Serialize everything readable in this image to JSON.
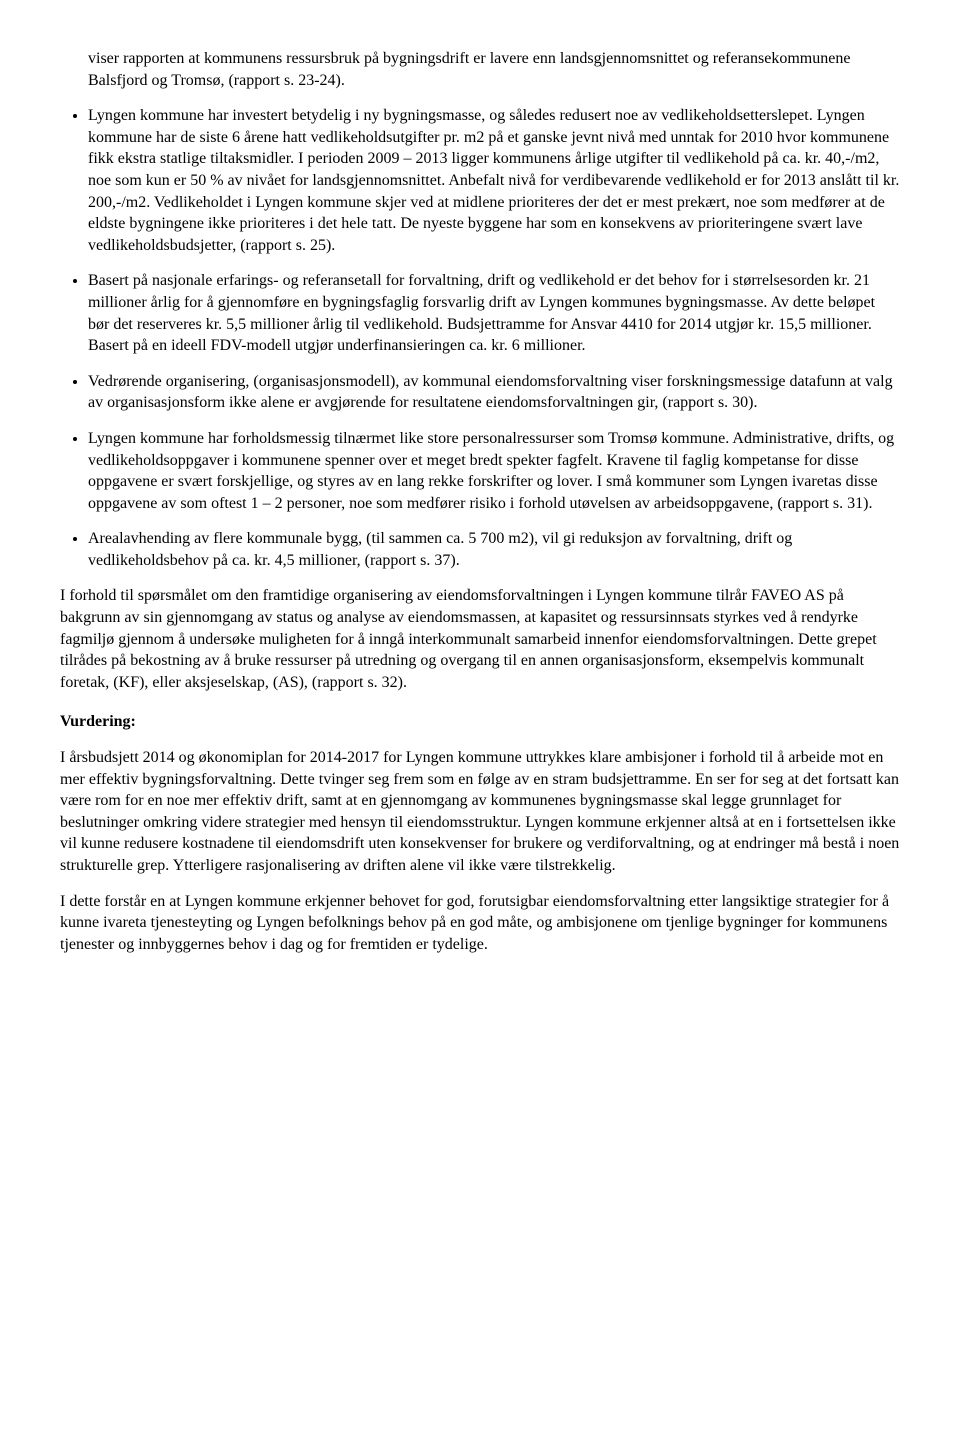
{
  "continued_bullet_text": "viser rapporten at kommunens ressursbruk på bygningsdrift er lavere enn landsgjennomsnittet og referansekommunene Balsfjord og Tromsø, (rapport s. 23-24).",
  "bullets": [
    "Lyngen kommune har investert betydelig i ny bygningsmasse, og således redusert noe av vedlikeholdsetterslepet. Lyngen kommune har de siste 6 årene hatt vedlikeholdsutgifter pr. m2 på et ganske jevnt nivå med unntak for 2010 hvor kommunene fikk ekstra statlige tiltaksmidler. I perioden 2009 – 2013 ligger kommunens årlige utgifter til vedlikehold på ca. kr. 40,-/m2, noe som kun er 50 % av nivået for landsgjennomsnittet. Anbefalt nivå for verdibevarende vedlikehold er for 2013 anslått til kr. 200,-/m2. Vedlikeholdet i Lyngen kommune skjer ved at midlene prioriteres der det er mest prekært, noe som medfører at de eldste bygningene ikke prioriteres i det hele tatt. De nyeste byggene har som en konsekvens av prioriteringene svært lave vedlikeholdsbudsjetter, (rapport s. 25).",
    "Basert på nasjonale erfarings- og referansetall for forvaltning, drift og vedlikehold er det behov for i størrelsesorden kr. 21 millioner årlig for å gjennomføre en bygningsfaglig forsvarlig drift av Lyngen kommunes bygningsmasse. Av dette beløpet bør det reserveres kr. 5,5 millioner årlig til vedlikehold. Budsjettramme for Ansvar 4410 for 2014 utgjør kr. 15,5 millioner. Basert på en ideell FDV-modell utgjør underfinansieringen ca. kr. 6 millioner.",
    "Vedrørende organisering, (organisasjonsmodell), av kommunal eiendomsforvaltning viser forskningsmessige datafunn at valg av organisasjonsform ikke alene er avgjørende for resultatene eiendomsforvaltningen gir, (rapport s. 30).",
    "Lyngen kommune har forholdsmessig tilnærmet like store personalressurser som Tromsø kommune. Administrative, drifts, og vedlikeholdsoppgaver i kommunene spenner over et meget bredt spekter fagfelt. Kravene til faglig kompetanse for disse oppgavene er svært forskjellige, og styres av en lang rekke forskrifter og lover. I små kommuner som Lyngen ivaretas disse oppgavene av som oftest 1 – 2 personer, noe som medfører risiko i forhold utøvelsen av arbeidsoppgavene, (rapport s. 31).",
    "Arealavhending av flere kommunale bygg, (til sammen ca. 5 700 m2), vil gi reduksjon av forvaltning, drift og vedlikeholdsbehov på ca. kr. 4,5 millioner, (rapport s. 37)."
  ],
  "para_after_bullets": "I forhold til spørsmålet om den framtidige organisering av eiendomsforvaltningen i Lyngen kommune tilrår FAVEO AS på bakgrunn av sin gjennomgang av status og analyse av eiendomsmassen, at kapasitet og ressursinnsats styrkes ved å rendyrke fagmiljø gjennom å undersøke muligheten for å inngå interkommunalt samarbeid innenfor eiendomsforvaltningen. Dette grepet tilrådes på bekostning av å bruke ressurser på utredning og overgang til en annen organisasjonsform, eksempelvis kommunalt foretak, (KF), eller aksjeselskap, (AS), (rapport s. 32).",
  "heading_vurdering": "Vurdering:",
  "vurdering_p1": "I årsbudsjett 2014 og økonomiplan for 2014-2017 for Lyngen kommune uttrykkes klare ambisjoner i forhold til å arbeide mot en mer effektiv bygningsforvaltning. Dette tvinger seg frem som en følge av en stram budsjettramme. En ser for seg at det fortsatt kan være rom for en noe mer effektiv drift, samt at en gjennomgang av kommunenes bygningsmasse skal legge grunnlaget for beslutninger omkring videre strategier med hensyn til eiendomsstruktur. Lyngen kommune erkjenner altså at en i fortsettelsen ikke vil kunne redusere kostnadene til eiendomsdrift uten konsekvenser for brukere og verdiforvaltning, og at endringer må bestå i noen strukturelle grep. Ytterligere rasjonalisering av driften alene vil ikke være tilstrekkelig.",
  "vurdering_p2": "I dette forstår en at Lyngen kommune erkjenner behovet for god, forutsigbar eiendomsforvaltning etter langsiktige strategier for å kunne ivareta tjenesteyting og Lyngen befolknings behov på en god måte, og ambisjonene om tjenlige bygninger for kommunens tjenester og innbyggernes behov i dag og for fremtiden er tydelige."
}
